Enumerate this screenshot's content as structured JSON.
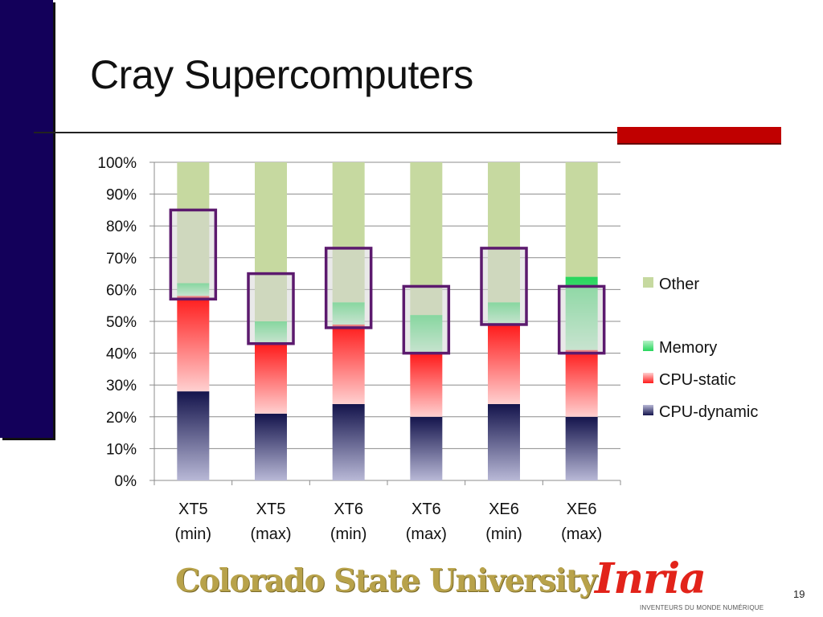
{
  "slide": {
    "title": "Cray Supercomputers",
    "page_number": "19",
    "colors": {
      "left_bar": "#13005a",
      "accent": "#c00000"
    }
  },
  "logos": {
    "csu": "Colorado State University",
    "inria": "Inria",
    "inria_tagline": "INVENTEURS DU MONDE NUMÉRIQUE"
  },
  "chart_data": {
    "type": "bar",
    "stacked": "percent",
    "categories": [
      [
        "XT5",
        "(min)"
      ],
      [
        "XT5",
        "(max)"
      ],
      [
        "XT6",
        "(min)"
      ],
      [
        "XT6",
        "(max)"
      ],
      [
        "XE6",
        "(min)"
      ],
      [
        "XE6",
        "(max)"
      ]
    ],
    "series": [
      {
        "name": "CPU-dynamic",
        "values": [
          28,
          21,
          24,
          20,
          24,
          20
        ],
        "color": "#1f1f5c"
      },
      {
        "name": "CPU-static",
        "values": [
          30,
          22,
          25,
          20,
          25,
          21
        ],
        "color": "#ff2020"
      },
      {
        "name": "Memory",
        "values": [
          4,
          7,
          7,
          12,
          7,
          23
        ],
        "color": "#33dd66"
      },
      {
        "name": "Other",
        "values": [
          38,
          50,
          44,
          48,
          44,
          36
        ],
        "color": "#c6d9a0"
      }
    ],
    "highlight_boxes": [
      {
        "category_index": 0,
        "from": 57,
        "to": 85
      },
      {
        "category_index": 1,
        "from": 43,
        "to": 65
      },
      {
        "category_index": 2,
        "from": 48,
        "to": 73
      },
      {
        "category_index": 3,
        "from": 40,
        "to": 61
      },
      {
        "category_index": 4,
        "from": 49,
        "to": 73
      },
      {
        "category_index": 5,
        "from": 40,
        "to": 61
      }
    ],
    "highlight_color": "#5c1a6e",
    "ylim": [
      0,
      100
    ],
    "yticks": [
      "0%",
      "10%",
      "20%",
      "30%",
      "40%",
      "50%",
      "60%",
      "70%",
      "80%",
      "90%",
      "100%"
    ],
    "grid": true,
    "legend": {
      "position": "right",
      "order": [
        "Other",
        "Memory",
        "CPU-static",
        "CPU-dynamic"
      ]
    }
  }
}
